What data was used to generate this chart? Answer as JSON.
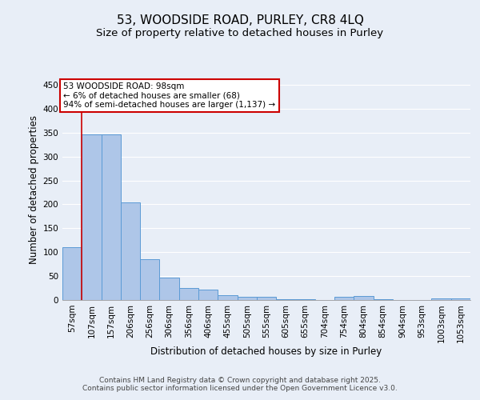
{
  "title": "53, WOODSIDE ROAD, PURLEY, CR8 4LQ",
  "subtitle": "Size of property relative to detached houses in Purley",
  "xlabel": "Distribution of detached houses by size in Purley",
  "ylabel": "Number of detached properties",
  "bin_labels": [
    "57sqm",
    "107sqm",
    "157sqm",
    "206sqm",
    "256sqm",
    "306sqm",
    "356sqm",
    "406sqm",
    "455sqm",
    "505sqm",
    "555sqm",
    "605sqm",
    "655sqm",
    "704sqm",
    "754sqm",
    "804sqm",
    "854sqm",
    "904sqm",
    "953sqm",
    "1003sqm",
    "1053sqm"
  ],
  "bar_heights": [
    110,
    347,
    346,
    204,
    85,
    47,
    25,
    21,
    10,
    7,
    6,
    1,
    1,
    0,
    7,
    8,
    1,
    0,
    0,
    3,
    4
  ],
  "bar_color": "#aec6e8",
  "bar_edge_color": "#5b9bd5",
  "annotation_text": "53 WOODSIDE ROAD: 98sqm\n← 6% of detached houses are smaller (68)\n94% of semi-detached houses are larger (1,137) →",
  "annotation_box_color": "#ffffff",
  "annotation_edge_color": "#cc0000",
  "vline_color": "#cc0000",
  "ylim": [
    0,
    460
  ],
  "yticks": [
    0,
    50,
    100,
    150,
    200,
    250,
    300,
    350,
    400,
    450
  ],
  "footer_text": "Contains HM Land Registry data © Crown copyright and database right 2025.\nContains public sector information licensed under the Open Government Licence v3.0.",
  "bg_color": "#e8eef7",
  "plot_bg_color": "#e8eef7",
  "grid_color": "#ffffff",
  "title_fontsize": 11,
  "subtitle_fontsize": 9.5,
  "label_fontsize": 8.5,
  "tick_fontsize": 7.5,
  "annotation_fontsize": 7.5,
  "footer_fontsize": 6.5
}
